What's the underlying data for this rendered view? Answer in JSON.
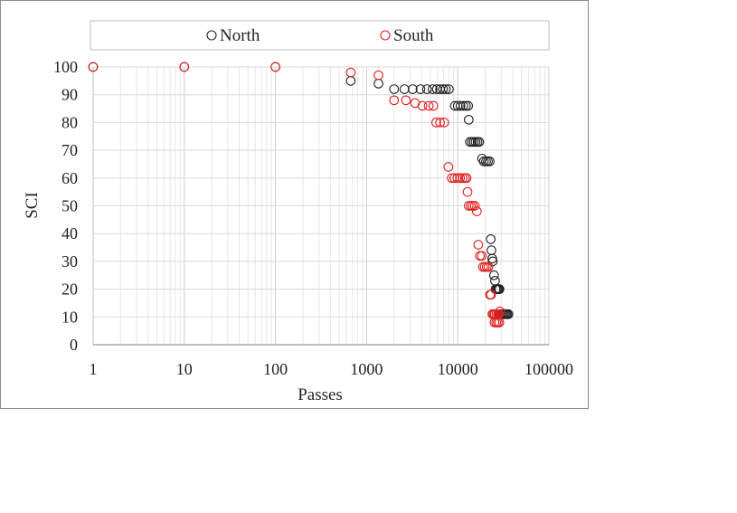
{
  "chart_data": {
    "type": "scatter",
    "title": "",
    "xlabel": "Passes",
    "ylabel": "SCI",
    "x_scale": "log",
    "xlim": [
      1,
      100000
    ],
    "ylim": [
      0,
      100
    ],
    "x_ticks": [
      1,
      10,
      100,
      1000,
      10000,
      100000
    ],
    "x_tick_labels": [
      "1",
      "10",
      "100",
      "1000",
      "10000",
      "100000"
    ],
    "y_ticks": [
      0,
      10,
      20,
      30,
      40,
      50,
      60,
      70,
      80,
      90,
      100
    ],
    "y_tick_labels": [
      "0",
      "10",
      "20",
      "30",
      "40",
      "50",
      "60",
      "70",
      "80",
      "90",
      "100"
    ],
    "grid": true,
    "legend": "top",
    "marker": "open-circle",
    "series": [
      {
        "name": "North",
        "color": "#222222",
        "points": [
          [
            1,
            100
          ],
          [
            10,
            100
          ],
          [
            100,
            100
          ],
          [
            670,
            95
          ],
          [
            1350,
            94
          ],
          [
            2000,
            92
          ],
          [
            2600,
            92
          ],
          [
            3200,
            92
          ],
          [
            3900,
            92
          ],
          [
            4600,
            92
          ],
          [
            5300,
            92
          ],
          [
            5900,
            92
          ],
          [
            6400,
            92
          ],
          [
            6900,
            92
          ],
          [
            7400,
            92
          ],
          [
            8000,
            92
          ],
          [
            9300,
            86
          ],
          [
            10000,
            86
          ],
          [
            10700,
            86
          ],
          [
            11500,
            86
          ],
          [
            12300,
            86
          ],
          [
            13000,
            86
          ],
          [
            13200,
            81
          ],
          [
            13600,
            73
          ],
          [
            14300,
            73
          ],
          [
            15000,
            73
          ],
          [
            15700,
            73
          ],
          [
            16500,
            73
          ],
          [
            17200,
            73
          ],
          [
            18500,
            67
          ],
          [
            19300,
            66
          ],
          [
            20400,
            66
          ],
          [
            21400,
            66
          ],
          [
            22400,
            66
          ],
          [
            23000,
            38
          ],
          [
            23400,
            34
          ],
          [
            23900,
            31
          ],
          [
            24200,
            30
          ],
          [
            25000,
            25
          ],
          [
            25600,
            23
          ],
          [
            26000,
            20
          ],
          [
            26700,
            20
          ],
          [
            27400,
            20
          ],
          [
            28000,
            20
          ],
          [
            28700,
            20
          ],
          [
            29000,
            11
          ],
          [
            30000,
            11
          ],
          [
            31000,
            11
          ],
          [
            32000,
            11
          ],
          [
            33000,
            11
          ],
          [
            34000,
            11
          ],
          [
            35000,
            11
          ],
          [
            36000,
            11
          ]
        ]
      },
      {
        "name": "South",
        "color": "#e02020",
        "points": [
          [
            1,
            100
          ],
          [
            10,
            100
          ],
          [
            100,
            100
          ],
          [
            670,
            98
          ],
          [
            1350,
            97
          ],
          [
            2000,
            88
          ],
          [
            2700,
            88
          ],
          [
            3400,
            87
          ],
          [
            4100,
            86
          ],
          [
            4800,
            86
          ],
          [
            5400,
            86
          ],
          [
            5800,
            80
          ],
          [
            6400,
            80
          ],
          [
            7100,
            80
          ],
          [
            7900,
            64
          ],
          [
            8600,
            60
          ],
          [
            9200,
            60
          ],
          [
            9900,
            60
          ],
          [
            10600,
            60
          ],
          [
            11300,
            60
          ],
          [
            12000,
            60
          ],
          [
            12500,
            60
          ],
          [
            12800,
            55
          ],
          [
            13200,
            50
          ],
          [
            13900,
            50
          ],
          [
            14600,
            50
          ],
          [
            15400,
            50
          ],
          [
            16200,
            48
          ],
          [
            16800,
            36
          ],
          [
            17500,
            32
          ],
          [
            18400,
            32
          ],
          [
            18900,
            28
          ],
          [
            19800,
            28
          ],
          [
            20800,
            28
          ],
          [
            21700,
            28
          ],
          [
            22600,
            18
          ],
          [
            23200,
            18
          ],
          [
            24000,
            11
          ],
          [
            24700,
            11
          ],
          [
            25500,
            11
          ],
          [
            26500,
            11
          ],
          [
            27600,
            11
          ],
          [
            28400,
            11
          ],
          [
            29000,
            12
          ],
          [
            25300,
            8
          ],
          [
            26400,
            8
          ],
          [
            27500,
            8
          ],
          [
            28600,
            8
          ]
        ]
      }
    ]
  }
}
